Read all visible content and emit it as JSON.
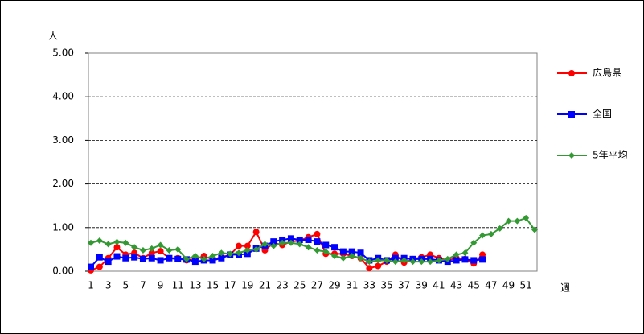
{
  "chart_data": {
    "type": "line",
    "y_label": "人",
    "x_label": "週",
    "categories": [
      "1",
      null,
      "3",
      null,
      "5",
      null,
      "7",
      null,
      "9",
      null,
      "11",
      null,
      "13",
      null,
      "15",
      null,
      "17",
      null,
      "19",
      null,
      "21",
      null,
      "23",
      null,
      "25",
      null,
      "27",
      null,
      "29",
      null,
      "31",
      null,
      "33",
      null,
      "35",
      null,
      "37",
      null,
      "39",
      null,
      "41",
      null,
      "43",
      null,
      "45",
      null,
      "47",
      null,
      "49",
      null,
      "51",
      null
    ],
    "series": [
      {
        "name": "広島県",
        "color": "#ff0000",
        "marker": "circle",
        "values": [
          0.02,
          0.1,
          0.3,
          0.55,
          0.38,
          0.42,
          0.3,
          0.42,
          0.46,
          0.3,
          0.3,
          0.25,
          0.28,
          0.35,
          0.27,
          0.32,
          0.38,
          0.58,
          0.58,
          0.9,
          0.48,
          0.65,
          0.6,
          0.68,
          0.7,
          0.78,
          0.85,
          0.4,
          0.4,
          0.4,
          0.35,
          0.3,
          0.07,
          0.12,
          0.22,
          0.38,
          0.2,
          0.28,
          0.32,
          0.38,
          0.3,
          0.25,
          0.3,
          0.28,
          0.18,
          0.38,
          null,
          null,
          null,
          null,
          null,
          null
        ]
      },
      {
        "name": "全国",
        "color": "#0000ff",
        "marker": "square",
        "values": [
          0.1,
          0.32,
          0.22,
          0.34,
          0.3,
          0.32,
          0.28,
          0.3,
          0.25,
          0.3,
          0.28,
          0.27,
          0.22,
          0.25,
          0.25,
          0.3,
          0.38,
          0.38,
          0.4,
          0.52,
          0.58,
          0.68,
          0.72,
          0.75,
          0.72,
          0.72,
          0.68,
          0.6,
          0.55,
          0.45,
          0.45,
          0.42,
          0.25,
          0.3,
          0.25,
          0.3,
          0.3,
          0.28,
          0.28,
          0.28,
          0.25,
          0.22,
          0.25,
          0.27,
          0.25,
          0.27,
          null,
          null,
          null,
          null,
          null,
          null
        ]
      },
      {
        "name": "5年平均",
        "color": "#339933",
        "marker": "diamond",
        "values": [
          0.65,
          0.7,
          0.62,
          0.67,
          0.65,
          0.55,
          0.48,
          0.52,
          0.6,
          0.48,
          0.5,
          0.28,
          0.35,
          0.28,
          0.35,
          0.42,
          0.4,
          0.42,
          0.48,
          0.5,
          0.62,
          0.58,
          0.65,
          0.65,
          0.62,
          0.55,
          0.48,
          0.45,
          0.35,
          0.3,
          0.35,
          0.3,
          0.22,
          0.25,
          0.25,
          0.22,
          0.25,
          0.22,
          0.22,
          0.22,
          0.25,
          0.28,
          0.38,
          0.42,
          0.65,
          0.82,
          0.85,
          0.98,
          1.15,
          1.15,
          1.22,
          0.95
        ]
      }
    ],
    "ylim": [
      0,
      5
    ],
    "yticks": [
      {
        "value": 0,
        "label": "0.00"
      },
      {
        "value": 1,
        "label": "1.00"
      },
      {
        "value": 2,
        "label": "2.00"
      },
      {
        "value": 3,
        "label": "3.00"
      },
      {
        "value": 4,
        "label": "4.00"
      },
      {
        "value": 5,
        "label": "5.00"
      }
    ],
    "grid": true,
    "legend": "right"
  }
}
